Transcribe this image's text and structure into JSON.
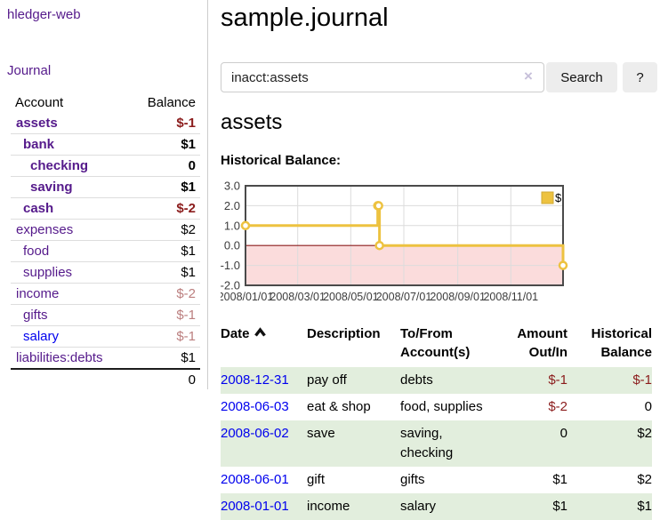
{
  "app": {
    "brand": "hledger-web"
  },
  "colors": {
    "link_purple": "#551a8b",
    "link_blue": "#0000ee",
    "negative_strong": "#8b1c1c",
    "negative_faded": "#bb7e7e",
    "row_stripe_green": "#e2eedd"
  },
  "sidebar": {
    "journal_link": "Journal",
    "accounts_table": {
      "headers": {
        "account": "Account",
        "balance": "Balance"
      },
      "rows": [
        {
          "account": "assets",
          "balance": "$-1",
          "depth": 1,
          "bold": true,
          "balance_style": "neg-strong",
          "link_style": "purple"
        },
        {
          "account": "bank",
          "balance": "$1",
          "depth": 2,
          "bold": true,
          "balance_style": "",
          "link_style": "purple"
        },
        {
          "account": "checking",
          "balance": "0",
          "depth": 3,
          "bold": true,
          "balance_style": "",
          "link_style": "purple"
        },
        {
          "account": "saving",
          "balance": "$1",
          "depth": 3,
          "bold": true,
          "balance_style": "",
          "link_style": "purple"
        },
        {
          "account": "cash",
          "balance": "$-2",
          "depth": 2,
          "bold": true,
          "balance_style": "neg-strong",
          "link_style": "purple"
        },
        {
          "account": "expenses",
          "balance": "$2",
          "depth": 1,
          "bold": false,
          "balance_style": "",
          "link_style": "purple"
        },
        {
          "account": "food",
          "balance": "$1",
          "depth": 2,
          "bold": false,
          "balance_style": "",
          "link_style": "purple"
        },
        {
          "account": "supplies",
          "balance": "$1",
          "depth": 2,
          "bold": false,
          "balance_style": "",
          "link_style": "purple"
        },
        {
          "account": "income",
          "balance": "$-2",
          "depth": 1,
          "bold": false,
          "balance_style": "neg-faded",
          "link_style": "purple"
        },
        {
          "account": "gifts",
          "balance": "$-1",
          "depth": 2,
          "bold": false,
          "balance_style": "neg-faded",
          "link_style": "purple"
        },
        {
          "account": "salary",
          "balance": "$-1",
          "depth": 2,
          "bold": false,
          "balance_style": "neg-faded",
          "link_style": "blue"
        },
        {
          "account": "liabilities:debts",
          "balance": "$1",
          "depth": 1,
          "bold": false,
          "balance_style": "",
          "link_style": "purple"
        }
      ],
      "total": "0"
    }
  },
  "main": {
    "title": "sample.journal",
    "search": {
      "value": "inacct:assets",
      "clear_icon": "×",
      "search_button": "Search",
      "help_button": "?"
    },
    "account_heading": "assets",
    "chart_title": "Historical Balance:"
  },
  "chart_data": {
    "type": "line",
    "title": "Historical Balance:",
    "steps": true,
    "ylim": [
      -2,
      3
    ],
    "xlim_days": [
      0,
      365
    ],
    "y_ticks": [
      {
        "label": "3.0",
        "value": 3
      },
      {
        "label": "2.0",
        "value": 2
      },
      {
        "label": "1.0",
        "value": 1
      },
      {
        "label": "0.0",
        "value": 0
      },
      {
        "label": "-1.0",
        "value": -1
      },
      {
        "label": "-2.0",
        "value": -2
      }
    ],
    "x_ticks": [
      {
        "label": "2008/01/01",
        "day": 0
      },
      {
        "label": "2008/03/01",
        "day": 60
      },
      {
        "label": "2008/05/01",
        "day": 121
      },
      {
        "label": "2008/07/01",
        "day": 182
      },
      {
        "label": "2008/09/01",
        "day": 244
      },
      {
        "label": "2008/11/01",
        "day": 305
      }
    ],
    "series": [
      {
        "name": "$",
        "color": "#edc240",
        "points": [
          {
            "date": "2008-01-01",
            "day": 0,
            "value": 1
          },
          {
            "date": "2008-06-01",
            "day": 152,
            "value": 2
          },
          {
            "date": "2008-06-02",
            "day": 153,
            "value": 2
          },
          {
            "date": "2008-06-03",
            "day": 154,
            "value": 0
          },
          {
            "date": "2008-12-31",
            "day": 365,
            "value": -1
          }
        ]
      }
    ],
    "legend": {
      "label": "$",
      "position": "top-right",
      "swatch_color": "#edc240"
    },
    "grid": {
      "on": true,
      "color": "#dcdcdc",
      "border_color": "#4a4a4a"
    },
    "negative_region_color": "#fbdcdc",
    "zero_line_color": "#8b1d1d"
  },
  "register": {
    "headers": [
      "Date",
      "Description",
      "To/From Account(s)",
      "Amount Out/In",
      "Historical Balance"
    ],
    "rows": [
      {
        "date": "2008-12-31",
        "description": "pay off",
        "to_from": "debts",
        "amount": "$-1",
        "balance": "$-1",
        "amount_negative": true,
        "balance_negative": true
      },
      {
        "date": "2008-06-03",
        "description": "eat & shop",
        "to_from": "food, supplies",
        "amount": "$-2",
        "balance": "0",
        "amount_negative": true,
        "balance_negative": false
      },
      {
        "date": "2008-06-02",
        "description": "save",
        "to_from": "saving, checking",
        "amount": "0",
        "balance": "$2",
        "amount_negative": false,
        "balance_negative": false
      },
      {
        "date": "2008-06-01",
        "description": "gift",
        "to_from": "gifts",
        "amount": "$1",
        "balance": "$2",
        "amount_negative": false,
        "balance_negative": false
      },
      {
        "date": "2008-01-01",
        "description": "income",
        "to_from": "salary",
        "amount": "$1",
        "balance": "$1",
        "amount_negative": false,
        "balance_negative": false
      }
    ]
  }
}
